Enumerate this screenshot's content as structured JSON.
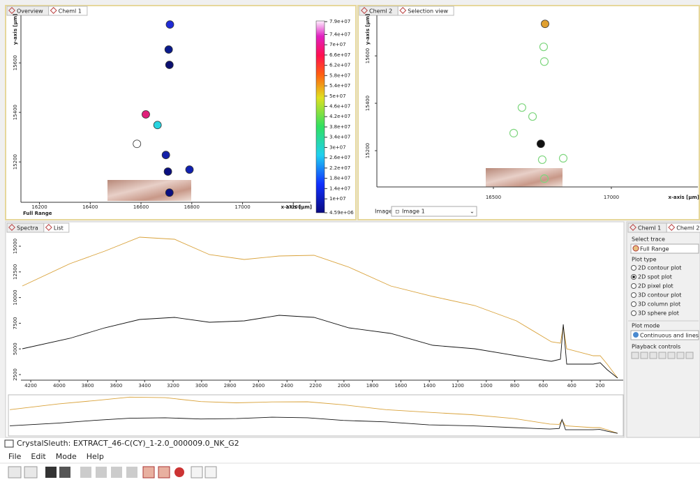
{
  "top_left": {
    "tabs": [
      "Overview",
      "Cheml 1"
    ],
    "chart": {
      "type": "scatter",
      "x_label": "x-axis [µm]",
      "y_label": "y-axis [µm]",
      "range_label": "Full Range",
      "xlim": [
        16127,
        17268
      ],
      "ylim": [
        15037,
        15792
      ],
      "xticks": [
        16200,
        16400,
        16600,
        16800,
        17000,
        17200
      ],
      "yticks": [
        15200,
        15400,
        15600
      ],
      "x": [
        16714,
        16709,
        16712,
        16619,
        16665,
        16584,
        16698,
        16706,
        16791,
        16712
      ],
      "y": [
        15755,
        15654,
        15592,
        15392,
        15349,
        15273,
        15228,
        15161,
        15169,
        15076
      ],
      "colors": [
        "#1f2bd6",
        "#0a1a8c",
        "#0b1070",
        "#e0207a",
        "#28d4e0",
        "#ffffff",
        "#1420a8",
        "#0a0f80",
        "#1020b0",
        "#0a0f80"
      ],
      "colorbar": {
        "lim": [
          4590000,
          79000000
        ],
        "ticks": [
          {
            "value": 79000000,
            "label": "7.9e+07"
          },
          {
            "value": 74000000,
            "label": "7.4e+07"
          },
          {
            "value": 70000000,
            "label": "7e+07"
          },
          {
            "value": 66000000,
            "label": "6.6e+07"
          },
          {
            "value": 62000000,
            "label": "6.2e+07"
          },
          {
            "value": 58000000,
            "label": "5.8e+07"
          },
          {
            "value": 54000000,
            "label": "5.4e+07"
          },
          {
            "value": 50000000,
            "label": "5e+07"
          },
          {
            "value": 46000000,
            "label": "4.6e+07"
          },
          {
            "value": 42000000,
            "label": "4.2e+07"
          },
          {
            "value": 38000000,
            "label": "3.8e+07"
          },
          {
            "value": 34000000,
            "label": "3.4e+07"
          },
          {
            "value": 30000000,
            "label": "3e+07"
          },
          {
            "value": 26000000,
            "label": "2.6e+07"
          },
          {
            "value": 22000000,
            "label": "2.2e+07"
          },
          {
            "value": 18000000,
            "label": "1.8e+07"
          },
          {
            "value": 14000000,
            "label": "1.4e+07"
          },
          {
            "value": 10000000,
            "label": "1e+07"
          },
          {
            "value": 4590000,
            "label": "4.59e+06"
          }
        ]
      }
    }
  },
  "top_right": {
    "tabs": [
      "Cheml 2",
      "Selection view"
    ],
    "chart": {
      "type": "scatter",
      "x_label": "x-axis [µm]",
      "y_label": "y-axis [µm]",
      "xlim": [
        16006,
        17367
      ],
      "ylim": [
        15047,
        15771
      ],
      "xticks": [
        16500,
        17000
      ],
      "yticks": [
        15200,
        15400,
        15600
      ],
      "x": [
        16719,
        16713,
        16716,
        16621,
        16666,
        16586,
        16701,
        16796,
        16707,
        16716
      ],
      "y": [
        15735,
        15638,
        15576,
        15382,
        15344,
        15274,
        15229,
        15168,
        15162,
        15082
      ],
      "colors": [
        "#e0a030",
        "#7ed67e",
        "#7ed67e",
        "#7ed67e",
        "#7ed67e",
        "#7ed67e",
        "#111111",
        "#7ed67e",
        "#7ed67e",
        "#7ed67e"
      ],
      "filled": [
        true,
        false,
        false,
        false,
        false,
        false,
        true,
        false,
        false,
        false
      ]
    },
    "image_label": "Image:",
    "image_value": "Image 1"
  },
  "spectra": {
    "tabs": [
      "Spectra",
      "List"
    ],
    "chart": {
      "type": "line",
      "xlim": [
        4269,
        38
      ],
      "ylim": [
        1957,
        16223
      ],
      "xticks": [
        4200,
        4000,
        3800,
        3600,
        3400,
        3200,
        3000,
        2800,
        2600,
        2400,
        2200,
        2000,
        1800,
        1600,
        1400,
        1200,
        1000,
        800,
        600,
        400,
        200
      ],
      "yticks": [
        2500,
        5000,
        7500,
        10000,
        12500,
        15000
      ],
      "x": [
        4259,
        3925,
        3680,
        3435,
        3190,
        2945,
        2700,
        2455,
        2210,
        1965,
        1671,
        1376,
        1082,
        788,
        543,
        479,
        459,
        435,
        249,
        200,
        151,
        77
      ],
      "series": [
        {
          "color": "#d9a23a",
          "values": [
            11127,
            13301,
            14524,
            15883,
            15679,
            14184,
            13708,
            14048,
            14116,
            12961,
            11127,
            10108,
            9225,
            7731,
            5693,
            5557,
            7187,
            5013,
            4334,
            4334,
            3519,
            2160
          ]
        },
        {
          "color": "#111111",
          "values": [
            5013,
            6032,
            7051,
            7866,
            8070,
            7595,
            7731,
            8274,
            8070,
            7051,
            6508,
            5353,
            5013,
            4334,
            3791,
            3995,
            7391,
            3519,
            3519,
            3655,
            2976,
            2160
          ]
        }
      ]
    }
  },
  "controls": {
    "tabs": [
      "Cheml 1",
      "Cheml 2"
    ],
    "select_trace_label": "Select trace",
    "trace": "Full Range",
    "plot_type_label": "Plot type",
    "plot_types": [
      "2D contour plot",
      "2D spot plot",
      "2D pixel plot",
      "3D contour plot",
      "3D column plot",
      "3D sphere plot"
    ],
    "selected_plot_type": 1,
    "plot_mode_label": "Plot mode",
    "plot_mode": "Continuous and lines",
    "playback_label": "Playback controls"
  },
  "window": {
    "title": "CrystalSleuth: EXTRACT_46-C(CY)_1-2.0_000009.0_NK_G2",
    "menu": [
      "File",
      "Edit",
      "Mode",
      "Help"
    ]
  }
}
